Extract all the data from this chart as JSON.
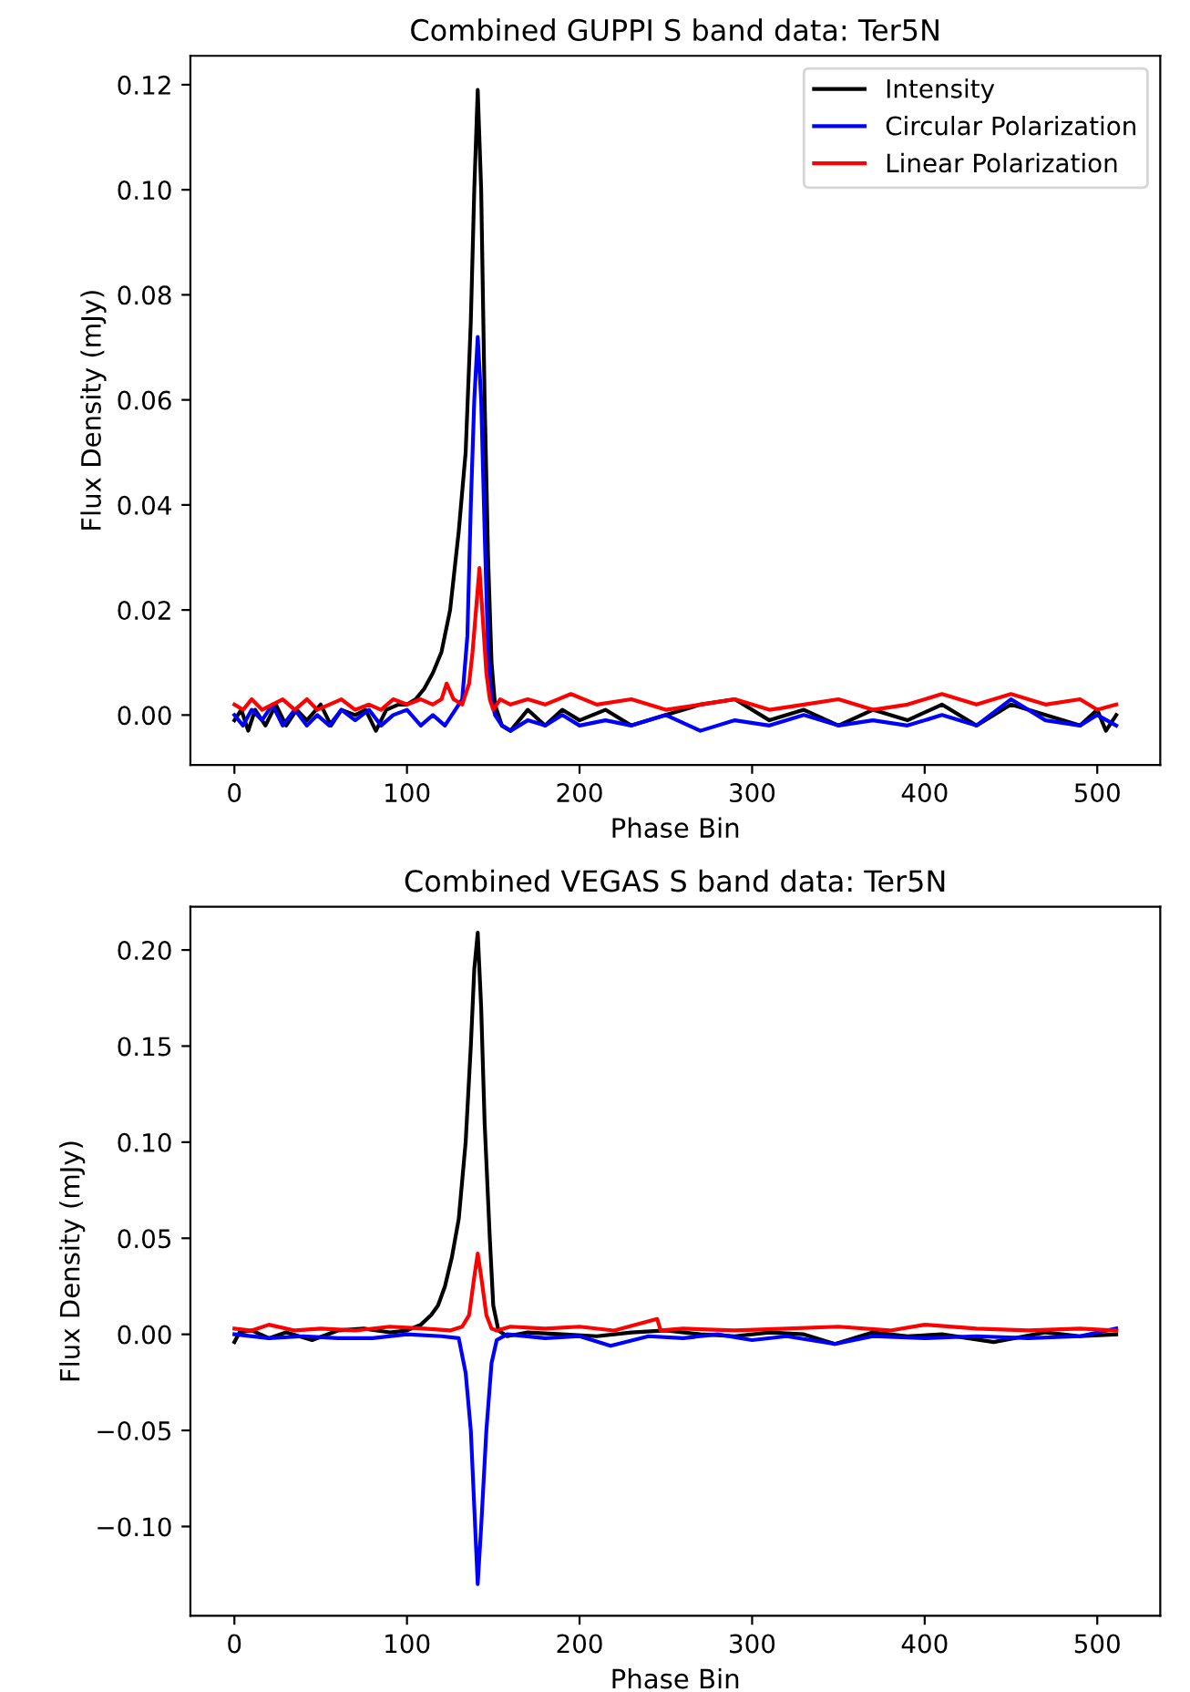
{
  "chart_data": [
    {
      "type": "line",
      "title": "Combined GUPPI S band data: Ter5N",
      "xlabel": "Phase Bin",
      "ylabel": "Flux Density (mJy)",
      "xlim": [
        -25.5,
        536.5
      ],
      "xticks": [
        0,
        100,
        200,
        300,
        400,
        500
      ],
      "ylim": [
        -0.0095,
        0.1255
      ],
      "yticks": [
        {
          "value": 0,
          "label": "0.00"
        },
        0.02,
        0.04,
        0.06,
        0.08,
        {
          "value": 0.1,
          "label": "0.10"
        },
        0.12
      ],
      "grid": false,
      "legend": "top right",
      "series": [
        {
          "name": "Intensity",
          "color": "#000000",
          "x": [
            0,
            4,
            8,
            12,
            18,
            24,
            30,
            36,
            42,
            50,
            56,
            62,
            70,
            76,
            82,
            88,
            95,
            100,
            105,
            110,
            115,
            120,
            125,
            130,
            134,
            137,
            139,
            141,
            143,
            145,
            147,
            149,
            151,
            155,
            160,
            170,
            180,
            190,
            200,
            215,
            230,
            250,
            270,
            290,
            310,
            330,
            350,
            370,
            390,
            410,
            430,
            450,
            470,
            490,
            500,
            505,
            511
          ],
          "values": [
            -0.001,
            0.001,
            -0.003,
            0.001,
            -0.002,
            0.002,
            -0.002,
            0.001,
            -0.001,
            0.002,
            -0.002,
            0.001,
            0,
            0.001,
            -0.003,
            0.001,
            0.002,
            0.002,
            0.003,
            0.005,
            0.008,
            0.012,
            0.02,
            0.035,
            0.05,
            0.075,
            0.1,
            0.119,
            0.1,
            0.06,
            0.03,
            0.01,
            0.002,
            -0.002,
            -0.003,
            0.001,
            -0.002,
            0.001,
            -0.001,
            0.001,
            -0.002,
            0,
            0.002,
            0.003,
            -0.001,
            0.001,
            -0.002,
            0.001,
            -0.001,
            0.002,
            -0.002,
            0.002,
            0,
            -0.002,
            0.001,
            -0.003,
            0
          ]
        },
        {
          "name": "Circular Polarization",
          "color": "#0000ff",
          "x": [
            0,
            5,
            10,
            16,
            22,
            28,
            35,
            42,
            48,
            55,
            62,
            70,
            78,
            85,
            92,
            100,
            108,
            115,
            122,
            128,
            132,
            135,
            137,
            139,
            141,
            143,
            145,
            147,
            149,
            151,
            155,
            160,
            170,
            180,
            190,
            200,
            215,
            230,
            250,
            270,
            290,
            310,
            330,
            350,
            370,
            390,
            410,
            430,
            450,
            470,
            490,
            500,
            511
          ],
          "values": [
            0,
            -0.002,
            0.001,
            -0.001,
            0.002,
            -0.002,
            0.001,
            -0.002,
            0,
            -0.002,
            0.001,
            -0.001,
            0.001,
            -0.002,
            0,
            0.001,
            -0.002,
            0,
            -0.002,
            0.001,
            0.003,
            0.015,
            0.04,
            0.06,
            0.072,
            0.06,
            0.035,
            0.012,
            0.003,
            0,
            -0.002,
            -0.003,
            -0.001,
            -0.002,
            0,
            -0.002,
            -0.001,
            -0.002,
            0,
            -0.003,
            -0.001,
            -0.002,
            0,
            -0.002,
            -0.001,
            -0.002,
            0,
            -0.002,
            0.003,
            -0.001,
            -0.002,
            0,
            -0.002
          ]
        },
        {
          "name": "Linear Polarization",
          "color": "#ff0000",
          "x": [
            0,
            5,
            10,
            16,
            22,
            28,
            35,
            42,
            48,
            55,
            62,
            70,
            78,
            85,
            92,
            100,
            108,
            115,
            120,
            123,
            127,
            132,
            136,
            138,
            140,
            142,
            144,
            146,
            148,
            150,
            154,
            160,
            170,
            180,
            195,
            210,
            230,
            250,
            270,
            290,
            310,
            330,
            350,
            370,
            390,
            410,
            430,
            450,
            470,
            490,
            500,
            511
          ],
          "values": [
            0.002,
            0.001,
            0.003,
            0.001,
            0.002,
            0.003,
            0.001,
            0.003,
            0.001,
            0.002,
            0.003,
            0.001,
            0.002,
            0.001,
            0.003,
            0.002,
            0.003,
            0.002,
            0.003,
            0.006,
            0.003,
            0.002,
            0.006,
            0.012,
            0.02,
            0.028,
            0.018,
            0.008,
            0.003,
            0.001,
            0.003,
            0.002,
            0.003,
            0.002,
            0.004,
            0.002,
            0.003,
            0.001,
            0.002,
            0.003,
            0.001,
            0.002,
            0.003,
            0.001,
            0.002,
            0.004,
            0.002,
            0.004,
            0.002,
            0.003,
            0.001,
            0.002
          ]
        }
      ]
    },
    {
      "type": "line",
      "title": "Combined VEGAS S band data: Ter5N",
      "xlabel": "Phase Bin",
      "ylabel": "Flux Density (mJy)",
      "xlim": [
        -25.5,
        536.5
      ],
      "xticks": [
        0,
        100,
        200,
        300,
        400,
        500
      ],
      "ylim": [
        -0.1465,
        0.2225
      ],
      "yticks": [
        {
          "value": -0.1,
          "label": "−0.10"
        },
        {
          "value": -0.05,
          "label": "−0.05"
        },
        {
          "value": 0,
          "label": "0.00"
        },
        0.05,
        {
          "value": 0.1,
          "label": "0.10"
        },
        0.15,
        {
          "value": 0.2,
          "label": "0.20"
        }
      ],
      "grid": false,
      "legend": false,
      "series": [
        {
          "color": "#000000",
          "x": [
            0,
            3,
            10,
            20,
            30,
            45,
            60,
            75,
            90,
            100,
            108,
            114,
            118,
            122,
            126,
            130,
            134,
            137,
            139,
            141,
            143,
            145,
            148,
            150,
            153,
            158,
            170,
            190,
            210,
            230,
            250,
            270,
            290,
            310,
            330,
            348,
            370,
            390,
            410,
            440,
            470,
            490,
            511
          ],
          "values": [
            -0.004,
            0.001,
            0.002,
            -0.002,
            0.001,
            -0.003,
            0.002,
            0.003,
            0.001,
            0.002,
            0.005,
            0.01,
            0.015,
            0.025,
            0.04,
            0.06,
            0.1,
            0.15,
            0.19,
            0.209,
            0.17,
            0.11,
            0.05,
            0.015,
            0.002,
            -0.001,
            0.001,
            0,
            -0.001,
            0.001,
            0.002,
            0,
            -0.001,
            0.001,
            0,
            -0.005,
            0.001,
            -0.001,
            0,
            -0.004,
            0.001,
            -0.001,
            0
          ]
        },
        {
          "color": "#0000ff",
          "x": [
            0,
            20,
            40,
            60,
            80,
            100,
            120,
            130,
            134,
            137,
            139,
            141,
            143,
            146,
            149,
            152,
            158,
            180,
            200,
            218,
            240,
            260,
            280,
            300,
            320,
            348,
            370,
            400,
            430,
            460,
            490,
            511
          ],
          "values": [
            0,
            -0.002,
            -0.001,
            -0.002,
            -0.002,
            0,
            -0.001,
            -0.002,
            -0.02,
            -0.05,
            -0.09,
            -0.13,
            -0.1,
            -0.05,
            -0.015,
            -0.003,
            0,
            -0.002,
            -0.001,
            -0.006,
            -0.001,
            -0.002,
            0,
            -0.003,
            -0.001,
            -0.005,
            -0.001,
            -0.002,
            -0.001,
            -0.002,
            -0.001,
            0.003
          ]
        },
        {
          "color": "#ff0000",
          "x": [
            0,
            10,
            20,
            35,
            50,
            70,
            90,
            110,
            125,
            132,
            136,
            139,
            141,
            143,
            146,
            149,
            152,
            160,
            180,
            200,
            220,
            245,
            247,
            260,
            290,
            320,
            350,
            380,
            400,
            430,
            460,
            490,
            511
          ],
          "values": [
            0.003,
            0.002,
            0.005,
            0.002,
            0.003,
            0.002,
            0.004,
            0.003,
            0.002,
            0.004,
            0.01,
            0.03,
            0.042,
            0.03,
            0.01,
            0.003,
            0.002,
            0.004,
            0.003,
            0.004,
            0.002,
            0.008,
            0.002,
            0.003,
            0.002,
            0.003,
            0.004,
            0.002,
            0.005,
            0.003,
            0.002,
            0.003,
            0.002
          ]
        }
      ]
    }
  ]
}
